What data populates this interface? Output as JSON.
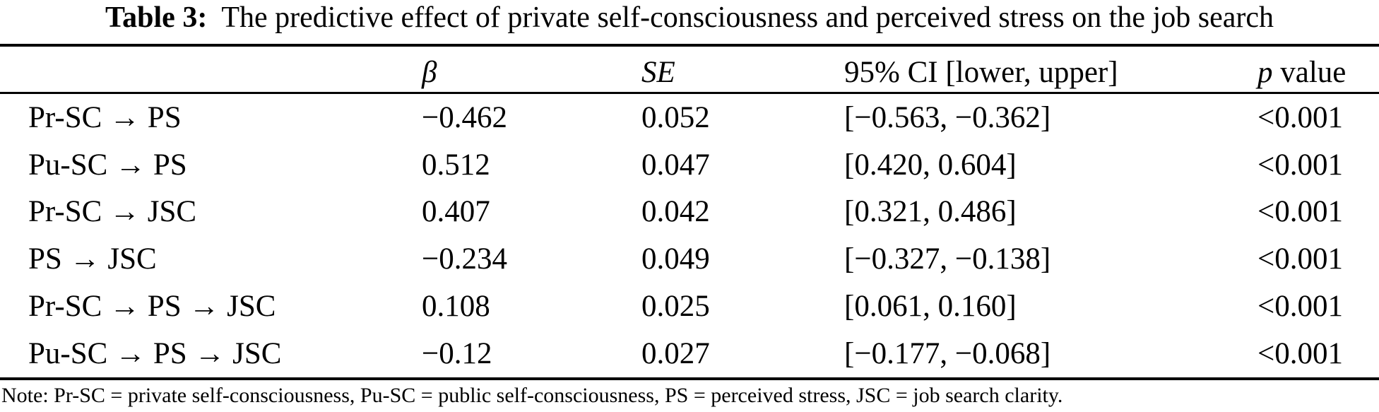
{
  "caption": {
    "label": "Table 3:",
    "text": "The predictive effect of private self-consciousness and perceived stress on the job search"
  },
  "table": {
    "headers": {
      "path": "",
      "beta": "β",
      "se": "SE",
      "ci": "95% CI [lower, upper]",
      "p_italic": "p",
      "p_rest": "value"
    },
    "rows": [
      {
        "path": "Pr-SC → PS",
        "beta": "−0.462",
        "se": "0.052",
        "ci": "[−0.563, −0.362]",
        "p": "<0.001"
      },
      {
        "path": "Pu-SC → PS",
        "beta": "0.512",
        "se": "0.047",
        "ci": "[0.420, 0.604]",
        "p": "<0.001"
      },
      {
        "path": "Pr-SC → JSC",
        "beta": "0.407",
        "se": "0.042",
        "ci": "[0.321, 0.486]",
        "p": "<0.001"
      },
      {
        "path": "PS → JSC",
        "beta": "−0.234",
        "se": "0.049",
        "ci": "[−0.327, −0.138]",
        "p": "<0.001"
      },
      {
        "path": "Pr-SC → PS → JSC",
        "beta": "0.108",
        "se": "0.025",
        "ci": "[0.061, 0.160]",
        "p": "<0.001"
      },
      {
        "path": "Pu-SC → PS → JSC",
        "beta": "−0.12",
        "se": "0.027",
        "ci": "[−0.177, −0.068]",
        "p": "<0.001"
      }
    ]
  },
  "note": "Note: Pr-SC = private self-consciousness, Pu-SC = public self-consciousness, PS = perceived stress, JSC = job search clarity."
}
